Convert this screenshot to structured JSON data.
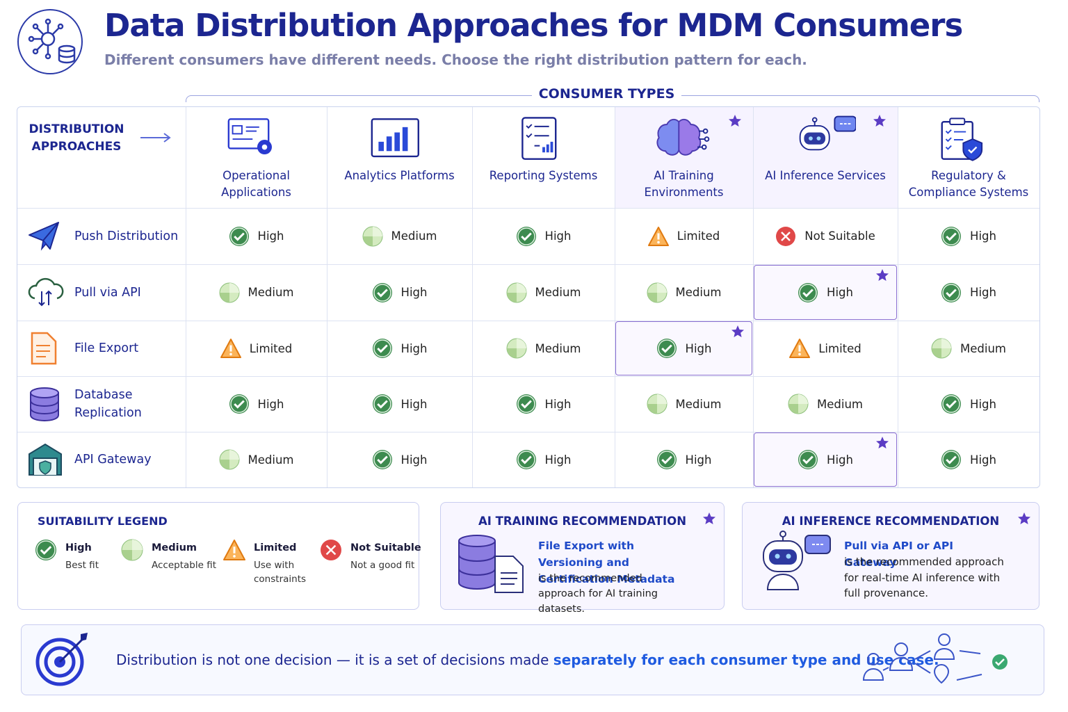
{
  "header": {
    "title": "Data Distribution Approaches for MDM Consumers",
    "subtitle": "Different consumers have different needs. Choose the right distribution pattern for each."
  },
  "matrix": {
    "group_label": "CONSUMER TYPES",
    "row_header_label": "DISTRIBUTION APPROACHES",
    "columns": [
      "Operational Applications",
      "Analytics Platforms",
      "Reporting Systems",
      "AI Training Environments",
      "AI Inference Services",
      "Regulatory & Compliance Systems"
    ],
    "rows": [
      {
        "name": "Push Distribution",
        "cells": [
          "High",
          "Medium",
          "High",
          "Limited",
          "Not Suitable",
          "High"
        ]
      },
      {
        "name": "Pull via API",
        "cells": [
          "Medium",
          "High",
          "Medium",
          "Medium",
          "High",
          "High"
        ]
      },
      {
        "name": "File Export",
        "cells": [
          "Limited",
          "High",
          "Medium",
          "High",
          "Limited",
          "Medium"
        ]
      },
      {
        "name": "Database Replication",
        "cells": [
          "High",
          "High",
          "High",
          "Medium",
          "Medium",
          "High"
        ]
      },
      {
        "name": "API Gateway",
        "cells": [
          "Medium",
          "High",
          "High",
          "High",
          "High",
          "High"
        ]
      }
    ]
  },
  "legend": {
    "title": "SUITABILITY LEGEND",
    "items": [
      {
        "label": "High",
        "description": "Best fit"
      },
      {
        "label": "Medium",
        "description": "Acceptable fit"
      },
      {
        "label": "Limited",
        "description": "Use with constraints"
      },
      {
        "label": "Not Suitable",
        "description": "Not a good fit"
      }
    ]
  },
  "recommendations": [
    {
      "title": "AI TRAINING RECOMMENDATION",
      "highlight": "File Export with Versioning and Certification Metadata",
      "text": "is the recommended approach for AI training datasets."
    },
    {
      "title": "AI INFERENCE RECOMMENDATION",
      "highlight": "Pull via API or API Gateway",
      "text": "is the recommended approach for real-time AI inference with full provenance."
    }
  ],
  "footer": {
    "text": "Distribution is not one decision — it is a set of decisions made",
    "highlight": "separately for each consumer type and use case."
  }
}
